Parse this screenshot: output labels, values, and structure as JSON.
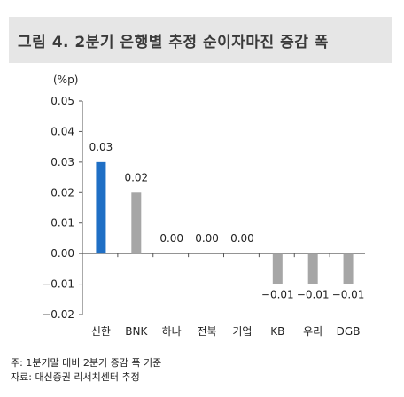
{
  "title": "그림 4.  2분기 은행별 추정 순이자마진 증감 폭",
  "footer": {
    "note": "주: 1분기말 대비 2분기 증감 폭 기준",
    "source": "자료: 대신증권 리서치센터 추정"
  },
  "chart_data": {
    "type": "bar",
    "unit_label": "(%p)",
    "categories": [
      "신한",
      "BNK",
      "하나",
      "전북",
      "기업",
      "KB",
      "우리",
      "DGB"
    ],
    "values": [
      0.03,
      0.02,
      0.0,
      0.0,
      0.0,
      -0.01,
      -0.01,
      -0.01
    ],
    "data_labels": [
      "0.03",
      "0.02",
      "0.00",
      "0.00",
      "0.00",
      "−0.01",
      "−0.01",
      "−0.01"
    ],
    "ylim": [
      -0.02,
      0.05
    ],
    "yticks": [
      0.05,
      0.04,
      0.03,
      0.02,
      0.01,
      0.0,
      -0.01,
      -0.02
    ],
    "ytick_labels": [
      "0.05",
      "0.04",
      "0.03",
      "0.02",
      "0.01",
      "0.00",
      "−0.01",
      "−0.02"
    ],
    "highlight_color": "#1f6fc5",
    "bar_color": "#a6a6a6",
    "grid": false
  }
}
